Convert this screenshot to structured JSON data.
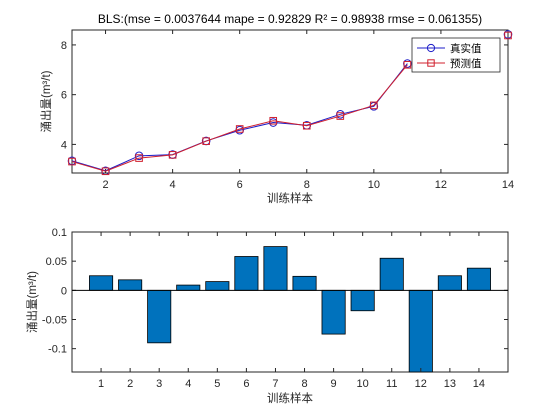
{
  "chart_data": [
    {
      "type": "line",
      "title": "BLS:(mse = 0.0037644 mape = 0.92829  R² = 0.98938 rmse = 0.061355)",
      "xlabel": "训练样本",
      "ylabel": "涌出量(m³/t)",
      "xlim": [
        1,
        14
      ],
      "ylim": [
        2.85,
        8.6
      ],
      "xticks": [
        2,
        4,
        6,
        8,
        10,
        12,
        14
      ],
      "yticks": [
        4,
        6,
        8
      ],
      "legend_position": "top-right",
      "x": [
        1,
        2,
        3,
        4,
        5,
        6,
        7,
        8,
        9,
        10,
        11,
        12,
        13,
        14
      ],
      "series": [
        {
          "name": "真实值",
          "marker": "circle",
          "color": "#1c1cc8",
          "values": [
            3.34,
            2.94,
            3.54,
            3.59,
            4.14,
            4.57,
            4.88,
            4.77,
            5.21,
            5.53,
            7.25,
            null,
            null,
            8.42
          ]
        },
        {
          "name": "预测值",
          "marker": "square",
          "color": "#d0202e",
          "values": [
            3.31,
            2.92,
            3.45,
            3.58,
            4.13,
            4.62,
            4.95,
            4.75,
            5.14,
            5.57,
            7.2,
            null,
            null,
            8.38
          ]
        }
      ]
    },
    {
      "type": "bar",
      "xlabel": "训练样本",
      "ylabel": "涌出量(m³/t)",
      "ylim": [
        -0.14,
        0.1
      ],
      "yticks": [
        -0.1,
        -0.05,
        0,
        0.05,
        0.1
      ],
      "yticklabels": [
        "-0.1",
        "-0.05",
        "0",
        "0.05",
        "0.1"
      ],
      "categories": [
        "1",
        "2",
        "3",
        "4",
        "5",
        "6",
        "7",
        "8",
        "9",
        "10",
        "11",
        "12",
        "13",
        "14"
      ],
      "values": [
        0.025,
        0.018,
        -0.09,
        0.009,
        0.015,
        0.058,
        0.075,
        0.024,
        -0.075,
        -0.035,
        0.055,
        -0.14,
        0.025,
        0.038
      ],
      "color": "#0072bd"
    }
  ]
}
